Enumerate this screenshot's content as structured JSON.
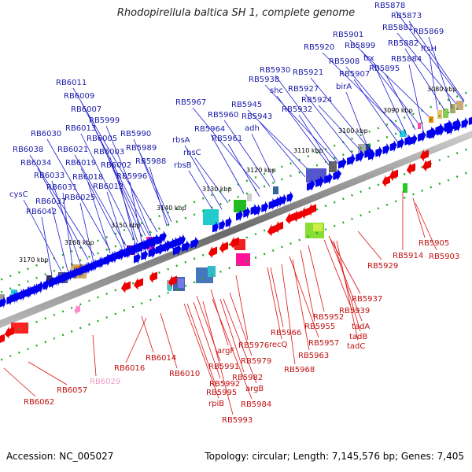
{
  "title": "Rhodopirellula baltica SH 1, complete genome",
  "footer": {
    "accession": "Accession: NC_005027",
    "summary": "Topology: circular; Length: 7,145,576 bp; Genes: 7,405"
  },
  "colors": {
    "forward_gene": "#0000ee",
    "reverse_gene": "#ee0000",
    "pseudo_gene": "#ff88cc",
    "backbone": "#888888",
    "tick_dots": "#22aa22"
  },
  "ticks": [
    "3080 kbp",
    "3090 kbp",
    "3100 kbp",
    "3110 kbp",
    "3120 kbp",
    "3130 kbp",
    "3140 kbp",
    "3150 kbp",
    "3160 kbp",
    "3170 kbp"
  ],
  "upper_labels": [
    "RB5878",
    "RB5873",
    "RB5881",
    "RB5869",
    "RB5901",
    "RB5882",
    "RB5920",
    "RB5899",
    "ftsH",
    "trx",
    "RB5908",
    "RB5884",
    "RB5921",
    "RB5907",
    "RB5930",
    "RB5895",
    "RB5938",
    "birA",
    "RB5927",
    "shc",
    "RB5924",
    "RB5945",
    "RB5932",
    "RB5967",
    "RB5943",
    "RB5960",
    "adh",
    "RB6011",
    "RB6009",
    "RB6007",
    "RB5999",
    "RB6013",
    "RB5964",
    "RB5990",
    "RB6005",
    "rbsA",
    "RB5961",
    "RB6030",
    "RB5989",
    "RB6003",
    "RB6021",
    "rbsC",
    "RB6038",
    "RB6019",
    "RB6002",
    "RB5988",
    "rbsB",
    "RB6034",
    "RB6018",
    "RB5996",
    "RB6033",
    "RB6012",
    "cysC",
    "RB6031",
    "RB6025",
    "RB6037",
    "RB6042"
  ],
  "lower_labels": [
    "RB5905",
    "RB5914",
    "RB5903",
    "RB5929",
    "RB5937",
    "RB5939",
    "RB5952",
    "RB5955",
    "tadA",
    "RB5957",
    "tadB",
    "tadC",
    "RB5966",
    "recQ",
    "RB5963",
    "RB5968",
    "RB5976",
    "argF",
    "RB5979",
    "RB5991",
    "RB5982",
    "RB5992",
    "argB",
    "RB5995",
    "RB5984",
    "rpiB",
    "RB5993",
    "RB6016",
    "RB6014",
    "RB6010",
    "RB6057",
    "RB6062",
    "RB6029"
  ]
}
